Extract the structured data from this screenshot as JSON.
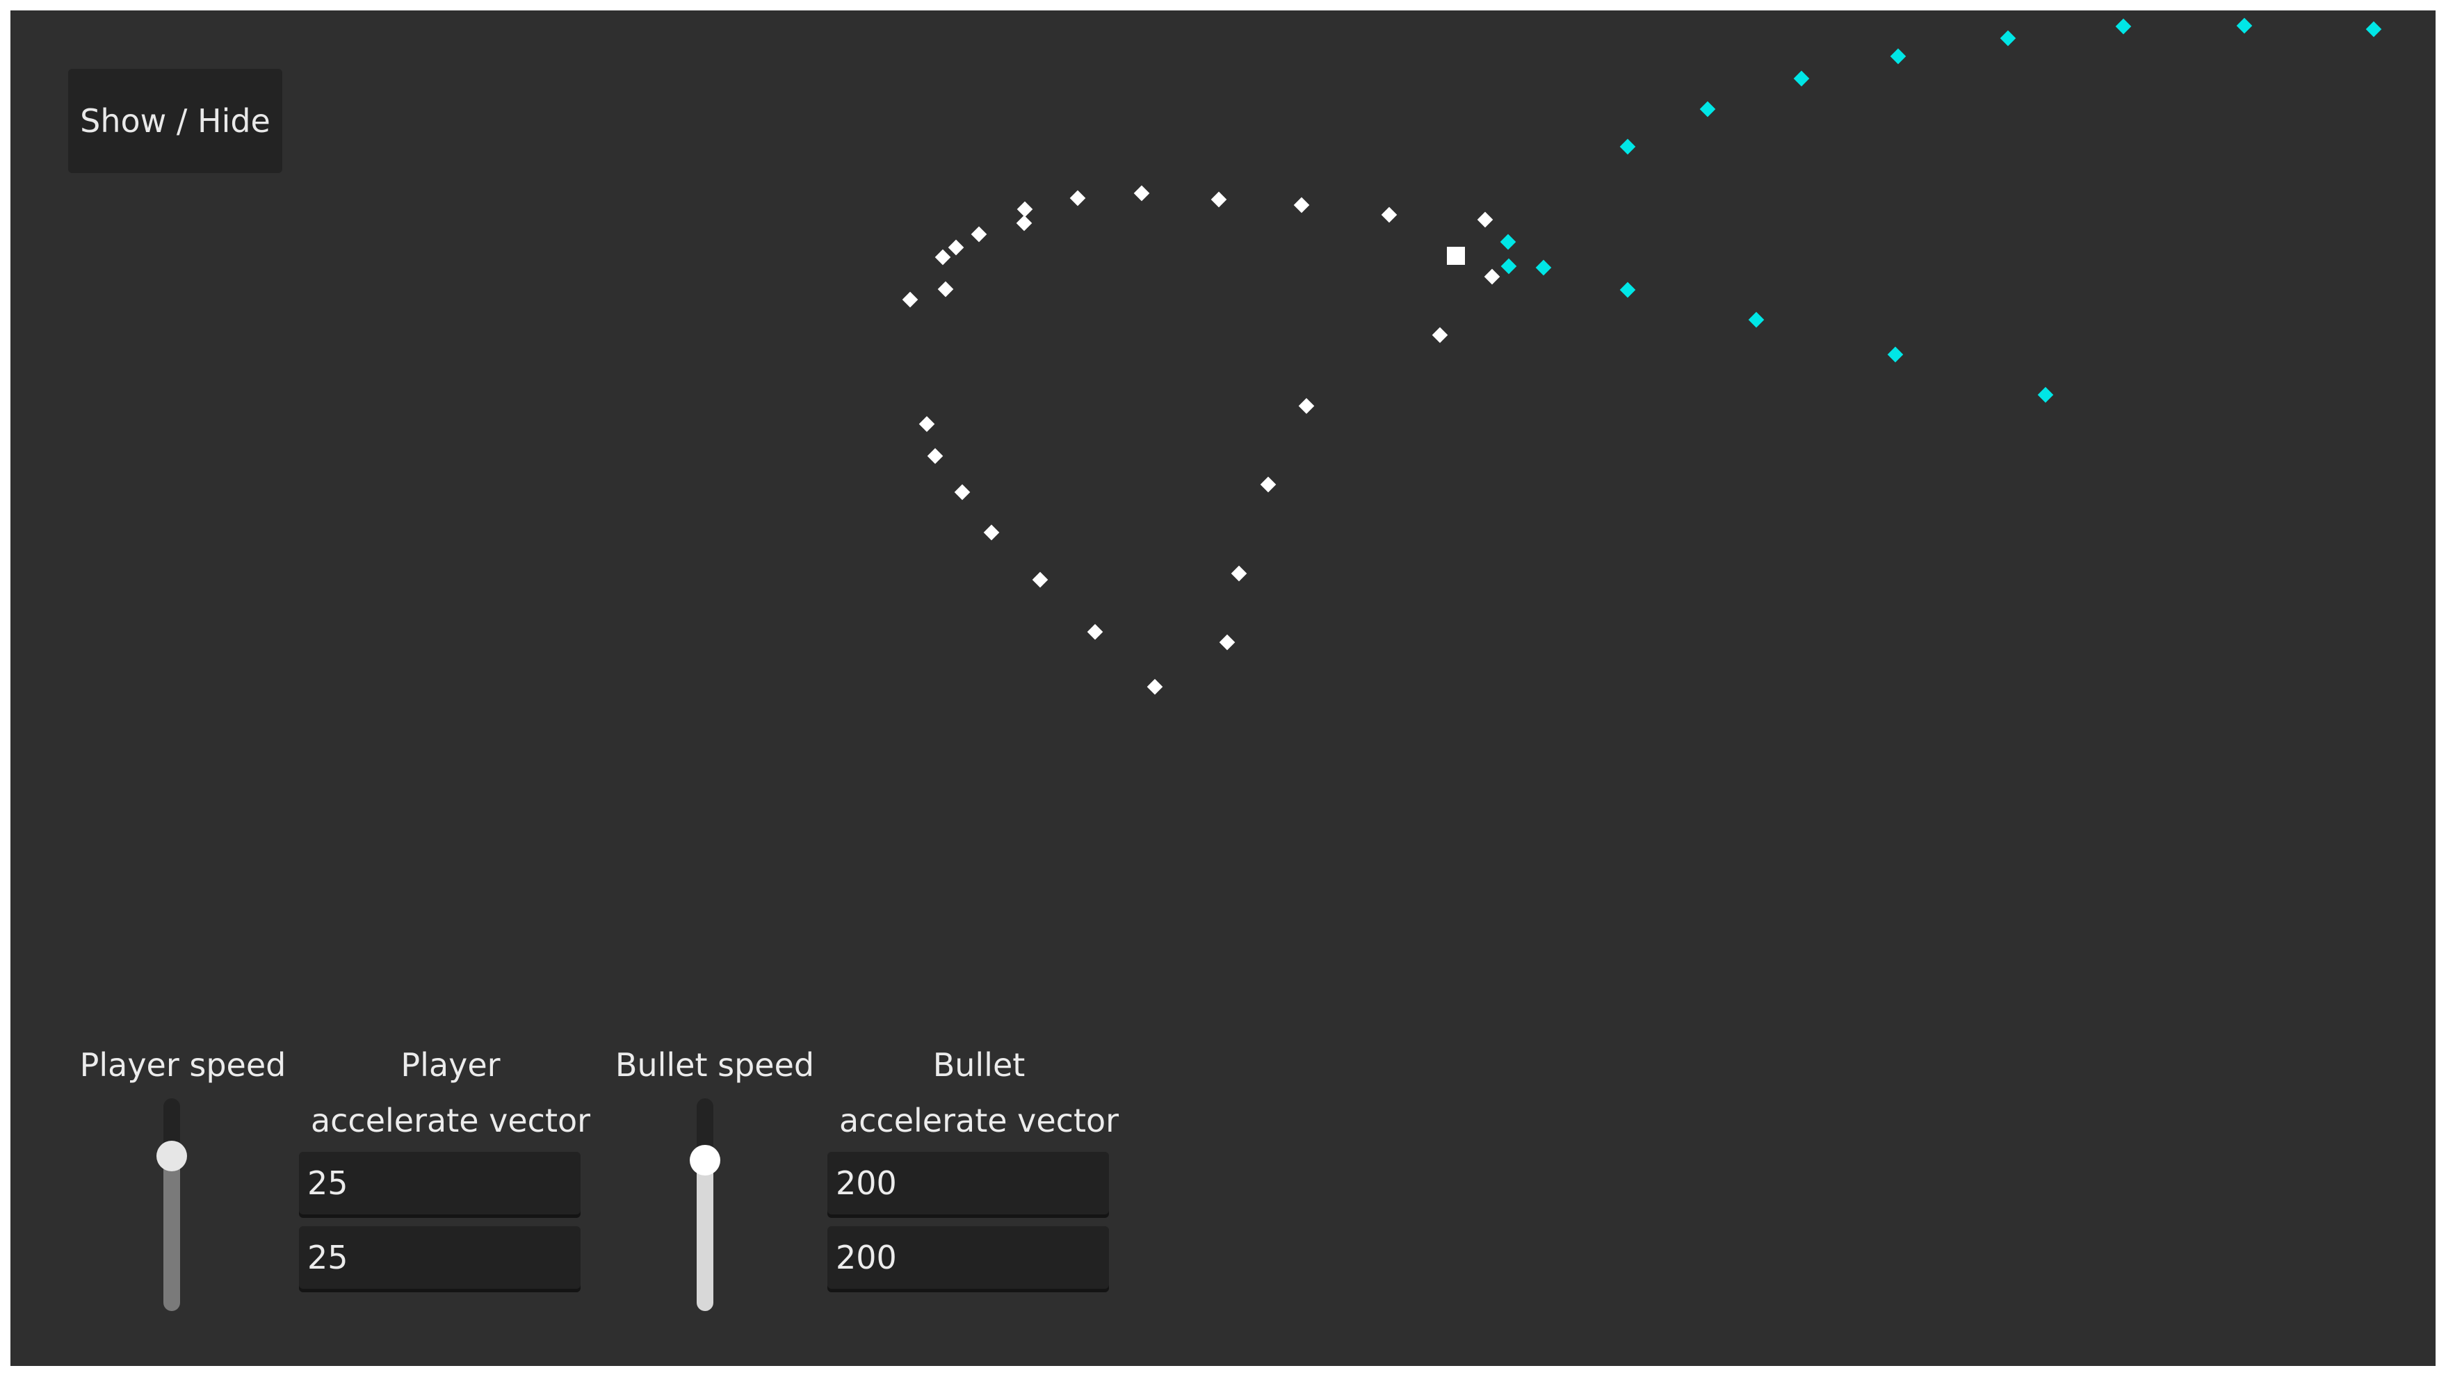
{
  "toolbar": {
    "toggle_label": "Show / Hide"
  },
  "controls": {
    "player_speed": {
      "label": "Player speed",
      "level": 0.73
    },
    "player_accel": {
      "label_line1": "Player",
      "label_line2": "accelerate vector",
      "x": "25",
      "y": "25"
    },
    "bullet_speed": {
      "label": "Bullet speed",
      "level": 0.71
    },
    "bullet_accel": {
      "label_line1": "Bullet",
      "label_line2": "accelerate vector",
      "x": "200",
      "y": "200"
    }
  },
  "colors": {
    "background": "#2f2f2f",
    "player_trail": "#ffffff",
    "bullet": "#00e6e6",
    "player_slider_fill": "#7a7a7a",
    "bullet_slider_fill": "#d8d8d8"
  }
}
